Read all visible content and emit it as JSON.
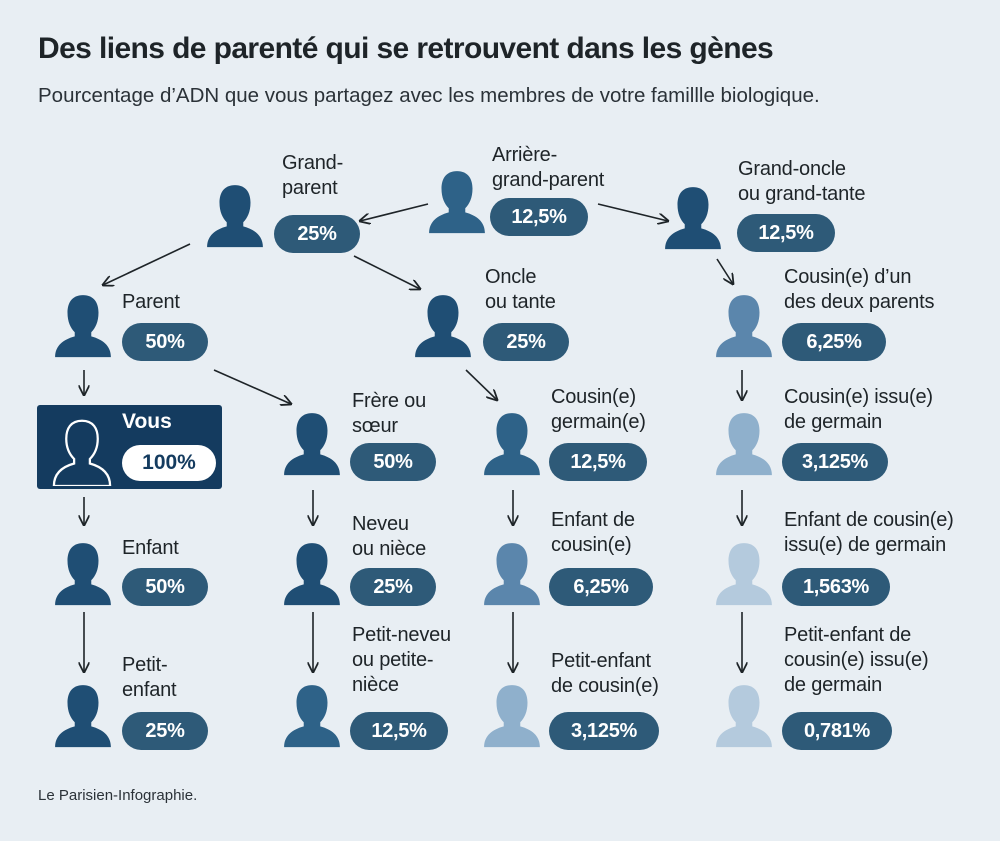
{
  "title": "Des liens de parenté qui se retrouvent dans les gènes",
  "subtitle": "Pourcentage d’ADN que vous partagez avec les membres de votre famillle biologique.",
  "source": "Le Parisien-Infographie.",
  "colors": {
    "background": "#e8eef3",
    "you_box": "#143b5f",
    "pill": "#2e5a78",
    "person_shades": [
      "#143b5f",
      "#1f4e74",
      "#2e6288",
      "#5b86ac",
      "#8fb0cc",
      "#b4cadd"
    ]
  },
  "you": {
    "label": "Vous",
    "value": "100%",
    "icon": "person-outline-icon"
  },
  "nodes": {
    "grand_parent": {
      "label": "Grand-\nparent",
      "value": "25%",
      "icon": "person-icon"
    },
    "great_grand_parent": {
      "label": "Arrière-\ngrand-parent",
      "value": "12,5%",
      "icon": "person-icon"
    },
    "great_uncle_aunt": {
      "label": "Grand-oncle\nou grand-tante",
      "value": "12,5%",
      "icon": "person-icon"
    },
    "parent": {
      "label": "Parent",
      "value": "50%",
      "icon": "person-icon"
    },
    "uncle_aunt": {
      "label": "Oncle\nou tante",
      "value": "25%",
      "icon": "person-icon"
    },
    "parent_cousin": {
      "label": "Cousin(e) d’un\ndes deux parents",
      "value": "6,25%",
      "icon": "person-icon"
    },
    "sibling": {
      "label": "Frère ou\nsœur",
      "value": "50%",
      "icon": "person-icon"
    },
    "first_cousin": {
      "label": "Cousin(e)\ngermain(e)",
      "value": "12,5%",
      "icon": "person-icon"
    },
    "second_cousin": {
      "label": "Cousin(e) issu(e)\nde germain",
      "value": "3,125%",
      "icon": "person-icon"
    },
    "child": {
      "label": "Enfant",
      "value": "50%",
      "icon": "person-icon"
    },
    "nephew_niece": {
      "label": "Neveu\nou nièce",
      "value": "25%",
      "icon": "person-icon"
    },
    "first_cousin_child": {
      "label": "Enfant de\ncousin(e)",
      "value": "6,25%",
      "icon": "person-icon"
    },
    "second_cousin_child": {
      "label": "Enfant de cousin(e)\nissu(e) de germain",
      "value": "1,563%",
      "icon": "person-icon"
    },
    "grand_child": {
      "label": "Petit-\nenfant",
      "value": "25%",
      "icon": "person-icon"
    },
    "grand_nephew_niece": {
      "label": "Petit-neveu\nou petite-\nnièce",
      "value": "12,5%",
      "icon": "person-icon"
    },
    "first_cousin_grandchild": {
      "label": "Petit-enfant\nde cousin(e)",
      "value": "3,125%",
      "icon": "person-icon"
    },
    "second_cousin_grandchild": {
      "label": "Petit-enfant de\ncousin(e) issu(e)\nde germain",
      "value": "0,781%",
      "icon": "person-icon"
    }
  },
  "edges": [
    [
      "great_grand_parent",
      "grand_parent"
    ],
    [
      "great_grand_parent",
      "great_uncle_aunt"
    ],
    [
      "grand_parent",
      "parent"
    ],
    [
      "grand_parent",
      "uncle_aunt"
    ],
    [
      "great_uncle_aunt",
      "parent_cousin"
    ],
    [
      "parent",
      "you"
    ],
    [
      "parent",
      "sibling"
    ],
    [
      "uncle_aunt",
      "first_cousin"
    ],
    [
      "parent_cousin",
      "second_cousin"
    ],
    [
      "you",
      "child"
    ],
    [
      "sibling",
      "nephew_niece"
    ],
    [
      "first_cousin",
      "first_cousin_child"
    ],
    [
      "second_cousin",
      "second_cousin_child"
    ],
    [
      "child",
      "grand_child"
    ],
    [
      "nephew_niece",
      "grand_nephew_niece"
    ],
    [
      "first_cousin_child",
      "first_cousin_grandchild"
    ],
    [
      "second_cousin_child",
      "second_cousin_grandchild"
    ]
  ]
}
